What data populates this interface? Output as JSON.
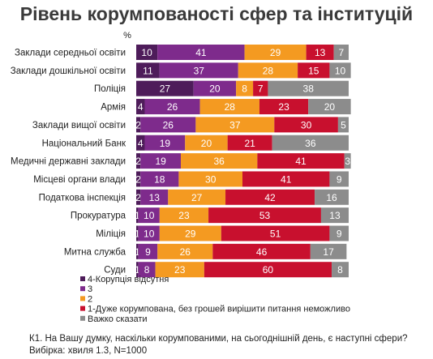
{
  "title": "Рівень корумпованості сфер та інституцій",
  "chart_data": {
    "type": "stacked-bar-horizontal",
    "unit_label": "%",
    "categories": [
      "Заклади середньої освіти",
      "Заклади дошкільної освіти",
      "Поліція",
      "Армія",
      "Заклади вищої освіти",
      "Національний Банк",
      "Медичні державні заклади",
      "Місцеві органи влади",
      "Податкова інспекція",
      "Прокуратура",
      "Міліція",
      "Митна служба",
      "Суди"
    ],
    "series": [
      {
        "name": "4-Корупція відсутня",
        "color": "#4e1c5a",
        "values": [
          10,
          11,
          27,
          4,
          2,
          4,
          2,
          2,
          2,
          1,
          1,
          1,
          1
        ]
      },
      {
        "name": "3",
        "color": "#7e2b8c",
        "values": [
          41,
          37,
          20,
          26,
          26,
          19,
          19,
          18,
          13,
          10,
          10,
          9,
          8
        ]
      },
      {
        "name": "2",
        "color": "#f49a21",
        "values": [
          29,
          28,
          8,
          28,
          37,
          20,
          36,
          30,
          27,
          23,
          29,
          26,
          23
        ]
      },
      {
        "name": "1-Дуже корумпована, без грошей вирішити питання неможливо",
        "color": "#c8102e",
        "values": [
          13,
          15,
          7,
          23,
          30,
          21,
          41,
          41,
          42,
          53,
          51,
          46,
          60
        ]
      },
      {
        "name": "Важко сказати",
        "color": "#8c8c8c",
        "values": [
          7,
          10,
          38,
          20,
          5,
          36,
          3,
          9,
          16,
          13,
          9,
          17,
          8
        ]
      }
    ],
    "xlim": [
      0,
      100
    ],
    "legend_position": "bottom-left"
  },
  "footnotes": [
    "К1. На Вашу думку, наскільки корумпованими, на сьогоднішній день, є наступні сфери?",
    "Вибірка: хвиля 1.3, N=1000"
  ]
}
